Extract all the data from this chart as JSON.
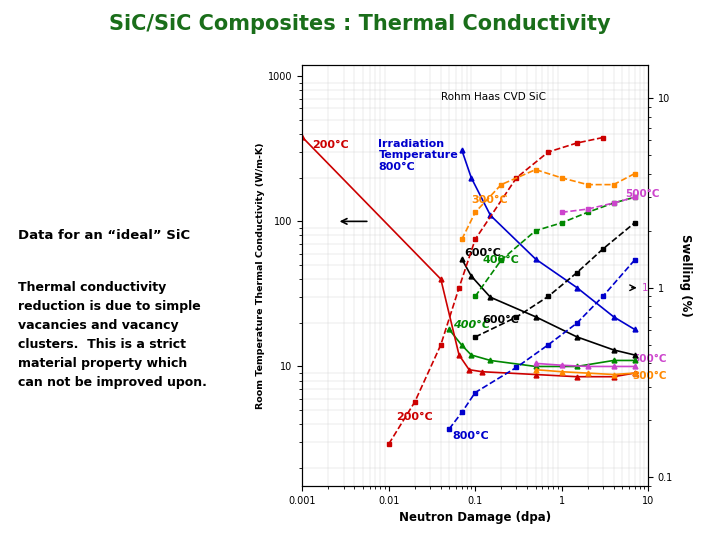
{
  "title": "SiC/SiC Composites : Thermal Conductivity",
  "title_color": "#1a6e1a",
  "xlabel": "Neutron Damage (dpa)",
  "ylabel": "Room Temperature Thermal Conductivity (W/m-K)",
  "ylabel2": "Swelling (%)",
  "annotation_rohm": "Rohm Haas CVD SiC",
  "left_text_title": "Data for an “ideal” SiC",
  "left_text_body": "Thermal conductivity\nreduction is due to simple\nvacancies and vacancy\nclusters.  This is a strict\nmaterial property which\ncan not be improved upon.",
  "xlim": [
    0.001,
    10
  ],
  "ylim": [
    1.5,
    1200
  ],
  "ylim2": [
    0.09,
    15
  ],
  "background_color": "#ffffff",
  "header_line_color": "#8aad8a",
  "cond_series": {
    "cond_800": {
      "x": [
        0.07,
        0.09,
        0.15,
        0.5,
        1.5,
        4.0,
        7.0
      ],
      "y": [
        310,
        200,
        110,
        55,
        35,
        22,
        18
      ],
      "color": "#0000cc",
      "label": "800°C"
    },
    "cond_600": {
      "x": [
        0.07,
        0.09,
        0.15,
        0.5,
        1.5,
        4.0,
        7.0
      ],
      "y": [
        55,
        42,
        30,
        22,
        16,
        13,
        12
      ],
      "color": "#000000",
      "label": "600°C"
    },
    "cond_400": {
      "x": [
        0.05,
        0.07,
        0.09,
        0.15,
        0.5,
        1.5,
        4.0,
        7.0
      ],
      "y": [
        18,
        14,
        12,
        11,
        10,
        10,
        11,
        11
      ],
      "color": "#008800",
      "label": "400°C"
    },
    "cond_200": {
      "x": [
        0.001,
        0.04,
        0.065,
        0.085,
        0.12,
        0.5,
        1.5,
        4.0,
        7.0
      ],
      "y": [
        380,
        40,
        12,
        9.5,
        9.2,
        8.8,
        8.5,
        8.5,
        9.0
      ],
      "color": "#cc0000",
      "label": "200°C"
    },
    "cond_500": {
      "x": [
        0.5,
        1.0,
        2.0,
        4.0,
        7.0
      ],
      "y": [
        10.5,
        10.2,
        10.0,
        10.0,
        10.0
      ],
      "color": "#cc44cc",
      "label": "500°C"
    },
    "cond_300": {
      "x": [
        0.5,
        1.0,
        2.0,
        4.0,
        7.0
      ],
      "y": [
        9.5,
        9.2,
        9.0,
        8.8,
        9.0
      ],
      "color": "#ff8800",
      "label": "300°C"
    }
  },
  "sw_series": {
    "sw_200": {
      "x": [
        0.01,
        0.02,
        0.04,
        0.065,
        0.1,
        0.3,
        0.7,
        1.5,
        3.0
      ],
      "y": [
        0.15,
        0.25,
        0.5,
        1.0,
        1.8,
        3.8,
        5.2,
        5.8,
        6.2
      ],
      "color": "#cc0000",
      "label": "200°C"
    },
    "sw_300": {
      "x": [
        0.07,
        0.1,
        0.2,
        0.5,
        1.0,
        2.0,
        4.0,
        7.0
      ],
      "y": [
        1.8,
        2.5,
        3.5,
        4.2,
        3.8,
        3.5,
        3.5,
        4.0
      ],
      "color": "#ff8800",
      "label": "300°C"
    },
    "sw_400": {
      "x": [
        0.1,
        0.2,
        0.5,
        1.0,
        2.0,
        4.0,
        7.0
      ],
      "y": [
        0.9,
        1.4,
        2.0,
        2.2,
        2.5,
        2.8,
        3.0
      ],
      "color": "#008800",
      "label": "400°C"
    },
    "sw_500": {
      "x": [
        1.0,
        2.0,
        4.0,
        7.0
      ],
      "y": [
        2.5,
        2.6,
        2.8,
        3.0
      ],
      "color": "#cc44cc",
      "label": "500°C"
    },
    "sw_600": {
      "x": [
        0.1,
        0.3,
        0.7,
        1.5,
        3.0,
        7.0
      ],
      "y": [
        0.55,
        0.7,
        0.9,
        1.2,
        1.6,
        2.2
      ],
      "color": "#000000",
      "label": "600°C"
    },
    "sw_800": {
      "x": [
        0.05,
        0.07,
        0.1,
        0.3,
        0.7,
        1.5,
        3.0,
        7.0
      ],
      "y": [
        0.18,
        0.22,
        0.28,
        0.38,
        0.5,
        0.65,
        0.9,
        1.4
      ],
      "color": "#0000cc",
      "label": "800°C"
    }
  }
}
